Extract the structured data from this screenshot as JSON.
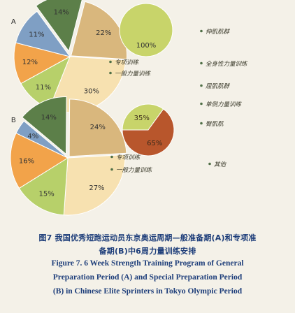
{
  "colors": {
    "background": "#f4f1e8",
    "caption": "#1e3e7a",
    "legend_text": "#3a3a2a",
    "legend_dot": "#4f6f46"
  },
  "chart_data": [
    {
      "type": "pie",
      "panel_label": "A",
      "main_pie": {
        "series": [
          {
            "name": "",
            "value": 14,
            "label": "14%",
            "color": "#5c7f49"
          },
          {
            "name": "",
            "value": 22,
            "label": "22%",
            "color": "#d9b77d"
          },
          {
            "name": "",
            "value": 30,
            "label": "30%",
            "color": "#f7e1b0"
          },
          {
            "name": "",
            "value": 11,
            "label": "11%",
            "color": "#b7d06a"
          },
          {
            "name": "",
            "value": 12,
            "label": "12%",
            "color": "#f2a34a"
          },
          {
            "name": "",
            "value": 11,
            "label": "11%",
            "color": "#7f9fc4"
          }
        ]
      },
      "side_pie": {
        "series": [
          {
            "name": "",
            "value": 100,
            "label": "100%",
            "color": "#c8d46a"
          }
        ]
      },
      "legend_left": [
        "专项训练",
        "一般力量训练"
      ],
      "legend_right": [
        "伸肌肌群",
        "全身性力量训练",
        "屈肌肌群",
        "单侧力量训练",
        "臀肌肌",
        "其他"
      ]
    },
    {
      "type": "pie",
      "panel_label": "B",
      "main_pie": {
        "series": [
          {
            "name": "",
            "value": 14,
            "label": "14%",
            "color": "#5c7f49"
          },
          {
            "name": "",
            "value": 24,
            "label": "24%",
            "color": "#d9b77d"
          },
          {
            "name": "",
            "value": 27,
            "label": "27%",
            "color": "#f7e1b0"
          },
          {
            "name": "",
            "value": 15,
            "label": "15%",
            "color": "#b7d06a"
          },
          {
            "name": "",
            "value": 16,
            "label": "16%",
            "color": "#f2a34a"
          },
          {
            "name": "",
            "value": 4,
            "label": "4%",
            "color": "#7f9fc4"
          }
        ]
      },
      "side_pie": {
        "series": [
          {
            "name": "",
            "value": 35,
            "label": "35%",
            "color": "#c8d46a"
          },
          {
            "name": "",
            "value": 65,
            "label": "65%",
            "color": "#b8562c"
          }
        ]
      },
      "legend_left": [
        "专项训练",
        "一般力量训练"
      ]
    }
  ],
  "caption": {
    "zh_line1": "图7  我国优秀短跑运动员东京奥运周期—般准备期(A)和专项准",
    "zh_line2": "备期(B)中6周力量训练安排",
    "en_line1": "Figure 7.   6 Week Strength Training Program of General",
    "en_line2": "Preparation Period (A) and Special Preparation Period",
    "en_line3": "(B) in Chinese Elite Sprinters in Tokyo Olympic Period"
  }
}
